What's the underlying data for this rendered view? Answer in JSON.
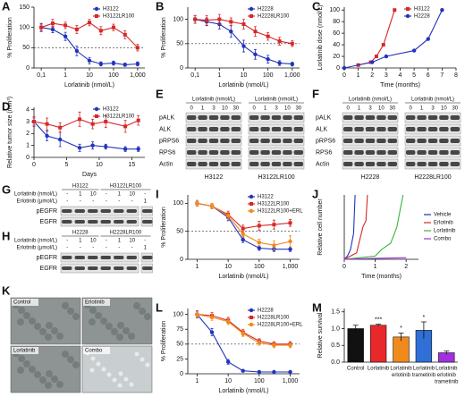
{
  "chart_data": [
    {
      "panel": "A",
      "type": "line",
      "log_x": true,
      "xlabel": "Lorlatinib (nmol/L)",
      "ylabel": "% Proliferation",
      "x": [
        0.1,
        0.3,
        1,
        3,
        10,
        30,
        100,
        300,
        1000
      ],
      "series": [
        {
          "name": "H3122",
          "color": "#2233bb",
          "marker": "circle",
          "values": [
            100,
            95,
            78,
            42,
            18,
            10,
            12,
            8,
            10
          ],
          "errors": [
            10,
            8,
            10,
            12,
            8,
            5,
            5,
            4,
            5
          ]
        },
        {
          "name": "H3122LR100",
          "color": "#d62828",
          "marker": "square",
          "values": [
            100,
            110,
            105,
            95,
            112,
            92,
            100,
            82,
            50
          ],
          "errors": [
            8,
            10,
            8,
            10,
            8,
            10,
            8,
            10,
            8
          ]
        }
      ],
      "xlim": [
        0.05,
        2000
      ],
      "ylim": [
        0,
        150
      ],
      "xticks": [
        {
          "value": 0.1,
          "label": "0,1"
        },
        1,
        10,
        100,
        {
          "value": 1000,
          "label": "1,000"
        }
      ],
      "yticks": [
        0,
        50,
        100,
        150
      ],
      "ref_line": 50,
      "legend": "top-right"
    },
    {
      "panel": "B",
      "type": "line",
      "log_x": true,
      "xlabel": "Lorlatinib (nmol/L)",
      "ylabel": "% Proliferation",
      "x": [
        0.1,
        0.3,
        1,
        3,
        10,
        30,
        100,
        300,
        1000
      ],
      "series": [
        {
          "name": "H2228",
          "color": "#2233bb",
          "marker": "circle",
          "values": [
            100,
            95,
            90,
            75,
            45,
            28,
            18,
            10,
            8
          ],
          "errors": [
            8,
            8,
            10,
            12,
            12,
            10,
            8,
            5,
            4
          ]
        },
        {
          "name": "H2228LR100",
          "color": "#d62828",
          "marker": "square",
          "values": [
            100,
            98,
            100,
            95,
            90,
            75,
            65,
            55,
            50
          ],
          "errors": [
            8,
            10,
            10,
            8,
            10,
            10,
            8,
            8,
            6
          ]
        }
      ],
      "xlim": [
        0.05,
        2000
      ],
      "ylim": [
        0,
        125
      ],
      "xticks": [
        {
          "value": 0.1,
          "label": "0,1"
        },
        1,
        10,
        100,
        {
          "value": 1000,
          "label": "1,000"
        }
      ],
      "yticks": [
        0,
        50,
        100
      ],
      "ref_line": 50,
      "legend": "top-right"
    },
    {
      "panel": "C",
      "type": "line",
      "xlabel": "Time (months)",
      "ylabel": "Lorlatinib dose (nmol/L)",
      "series": [
        {
          "name": "H3122",
          "color": "#d62828",
          "marker": "square",
          "x": [
            1,
            1.9,
            2.3,
            2.8,
            3.6
          ],
          "values": [
            5,
            10,
            20,
            40,
            100
          ]
        },
        {
          "name": "H2228",
          "color": "#2233bb",
          "marker": "circle",
          "x": [
            0,
            2,
            3,
            5,
            6,
            7
          ],
          "values": [
            0,
            10,
            20,
            30,
            50,
            100
          ]
        }
      ],
      "xlim": [
        0,
        8
      ],
      "ylim": [
        0,
        105
      ],
      "xticks": [
        0,
        1,
        2,
        3,
        4,
        5,
        6,
        7,
        8
      ],
      "yticks": [
        0,
        20,
        40,
        60,
        80,
        100
      ],
      "legend": "top-right"
    },
    {
      "panel": "D",
      "type": "line",
      "xlabel": "Days",
      "ylabel": "Relative tumor size (mm³)",
      "x": [
        0,
        2,
        4,
        7,
        9,
        11,
        14,
        16
      ],
      "series": [
        {
          "name": "H3122",
          "color": "#2233bb",
          "marker": "circle",
          "values": [
            3,
            1.8,
            1.5,
            0.8,
            1,
            0.9,
            0.7,
            0.7
          ],
          "errors": [
            0.3,
            0.4,
            0.6,
            0.3,
            0.3,
            0.2,
            0.2,
            0.2
          ]
        },
        {
          "name": "H3122LR100",
          "color": "#d62828",
          "marker": "square",
          "values": [
            3,
            2.8,
            2.5,
            3.2,
            2.8,
            3,
            2.6,
            3.1
          ],
          "errors": [
            0.4,
            0.5,
            0.4,
            0.6,
            0.4,
            0.5,
            0.5,
            0.4
          ]
        }
      ],
      "xlim": [
        0,
        17
      ],
      "ylim": [
        0,
        4.2
      ],
      "xticks": [
        0,
        5,
        10,
        15
      ],
      "yticks": [
        0,
        1,
        2,
        3,
        4
      ],
      "legend": "top-right"
    },
    {
      "panel": "I",
      "type": "line",
      "log_x": true,
      "xlabel": "Lorlatinib (nmol/L)",
      "ylabel": "% Proliferation",
      "x": [
        1,
        3,
        10,
        30,
        100,
        300,
        1000
      ],
      "series": [
        {
          "name": "H3122",
          "color": "#2233bb",
          "marker": "circle",
          "values": [
            100,
            95,
            75,
            35,
            20,
            18,
            18
          ],
          "errors": [
            5,
            5,
            6,
            5,
            4,
            4,
            4
          ]
        },
        {
          "name": "H3122LR100",
          "color": "#d62828",
          "marker": "square",
          "values": [
            100,
            95,
            80,
            55,
            60,
            62,
            65
          ],
          "errors": [
            5,
            5,
            6,
            6,
            8,
            8,
            6
          ]
        },
        {
          "name": "H3122LR100+ERL",
          "color": "#f08a1c",
          "marker": "circle",
          "values": [
            100,
            95,
            78,
            45,
            30,
            25,
            32
          ],
          "errors": [
            5,
            5,
            6,
            6,
            6,
            8,
            10
          ]
        }
      ],
      "xlim": [
        0.5,
        2000
      ],
      "ylim": [
        0,
        115
      ],
      "xticks": [
        1,
        10,
        100,
        {
          "value": 1000,
          "label": "1,000"
        }
      ],
      "yticks": [
        0,
        50,
        100
      ],
      "ref_line": 50,
      "legend": "top-right"
    },
    {
      "panel": "J",
      "type": "line",
      "xlabel": "Time (months)",
      "ylabel": "Relative cell number",
      "series": [
        {
          "name": "Vehicle",
          "color": "#2233bb",
          "x": [
            0,
            0.1,
            0.2,
            0.3,
            0.35
          ],
          "values": [
            0,
            1,
            3,
            8,
            20
          ]
        },
        {
          "name": "Erlotinib",
          "color": "#d62828",
          "x": [
            0,
            0.2,
            0.4,
            0.6,
            0.7,
            0.75
          ],
          "values": [
            0,
            1,
            2,
            10,
            12,
            20
          ]
        },
        {
          "name": "Lorlatinib",
          "color": "#3cb43c",
          "x": [
            0,
            0.5,
            1,
            1.2,
            1.5,
            1.7,
            1.9
          ],
          "values": [
            0,
            0.5,
            1,
            3,
            5,
            10,
            20
          ]
        },
        {
          "name": "Combo",
          "color": "#9b30d9",
          "x": [
            0,
            1,
            2
          ],
          "values": [
            0,
            0.3,
            0.5
          ]
        }
      ],
      "xlim": [
        0,
        2.4
      ],
      "ylim": [
        0,
        20
      ],
      "xticks": [
        0,
        1,
        2
      ],
      "legend": "right"
    },
    {
      "panel": "L",
      "type": "line",
      "log_x": true,
      "xlabel": "Lorlatinib (nmol/L)",
      "ylabel": "% Proliferation",
      "x": [
        1,
        3,
        10,
        30,
        100,
        300,
        1000
      ],
      "series": [
        {
          "name": "H2228",
          "color": "#2233bb",
          "marker": "circle",
          "values": [
            100,
            70,
            20,
            5,
            3,
            3,
            3
          ],
          "errors": [
            6,
            6,
            4,
            2,
            2,
            2,
            2
          ]
        },
        {
          "name": "H2228LR100",
          "color": "#d62828",
          "marker": "square",
          "values": [
            100,
            98,
            90,
            70,
            55,
            50,
            50
          ],
          "errors": [
            5,
            5,
            5,
            5,
            4,
            4,
            4
          ]
        },
        {
          "name": "H2228LR100+ERL",
          "color": "#f08a1c",
          "marker": "circle",
          "values": [
            100,
            95,
            88,
            68,
            52,
            48,
            48
          ],
          "errors": [
            5,
            5,
            5,
            5,
            4,
            4,
            4
          ]
        }
      ],
      "xlim": [
        0.5,
        2000
      ],
      "ylim": [
        0,
        110
      ],
      "xticks": [
        1,
        10,
        100,
        {
          "value": 1000,
          "label": "1,000"
        }
      ],
      "yticks": [
        0,
        25,
        50,
        75,
        100
      ],
      "ref_line": 50,
      "legend": "top-right"
    },
    {
      "panel": "M",
      "type": "bar",
      "ylabel": "Relative survival",
      "categories": [
        [
          "Control"
        ],
        [
          "Lorlatinib"
        ],
        [
          "Lorlatinib",
          "erlotinib"
        ],
        [
          "Lorlatinib",
          "trametinib"
        ],
        [
          "Lorlatinib",
          "erlotinib",
          "trametinib"
        ]
      ],
      "values": [
        1.0,
        1.1,
        0.75,
        0.95,
        0.28
      ],
      "errors": [
        0.1,
        0.03,
        0.12,
        0.25,
        0.05
      ],
      "colors": [
        "#111111",
        "#e8282b",
        "#f08a1c",
        "#2f6fd6",
        "#a030e0"
      ],
      "annotations": [
        null,
        "***",
        "*",
        "*",
        null
      ],
      "ylim": [
        0,
        1.6
      ],
      "yticks": [
        {
          "value": 0,
          "label": "0.0"
        },
        0.5,
        {
          "value": 1,
          "label": "1.0"
        },
        1.5
      ]
    }
  ],
  "blots": [
    {
      "panel": "E",
      "treatment_label": "Lorlatinib (nmol/L)",
      "groups": [
        {
          "name": "H3122",
          "lanes": [
            "0",
            "1",
            "3",
            "10",
            "30"
          ]
        },
        {
          "name": "H3122LR100",
          "lanes": [
            "0",
            "1",
            "3",
            "10",
            "30"
          ]
        }
      ],
      "rows": [
        "pALK",
        "ALK",
        "pRPS6",
        "RPS6",
        "Actin"
      ]
    },
    {
      "panel": "F",
      "treatment_label": "Lorlatinib (nmol/L)",
      "groups": [
        {
          "name": "H2228",
          "lanes": [
            "0",
            "1",
            "3",
            "10",
            "30"
          ]
        },
        {
          "name": "H2228LR100",
          "lanes": [
            "0",
            "1",
            "3",
            "10",
            "30"
          ]
        }
      ],
      "rows": [
        "pALK",
        "ALK",
        "pRPS6",
        "RPS6",
        "Actin"
      ]
    },
    {
      "panel": "G",
      "groups": [
        "H3122",
        "H3122LR100"
      ],
      "treatments": [
        {
          "label": "Lorlatinib (nmol/L)",
          "lanes": [
            "-",
            "1",
            "10",
            "-",
            "1",
            "10",
            "-"
          ]
        },
        {
          "label": "Erlotinib (μmol/L)",
          "lanes": [
            "-",
            "-",
            "-",
            "-",
            "-",
            "-",
            "1"
          ]
        }
      ],
      "rows": [
        "pEGFR",
        "EGFR"
      ]
    },
    {
      "panel": "H",
      "groups": [
        "H2228",
        "H2228LR100"
      ],
      "treatments": [
        {
          "label": "Lorlatinib (nmol/L)",
          "lanes": [
            "-",
            "1",
            "10",
            "-",
            "1",
            "10",
            "-"
          ]
        },
        {
          "label": "Erlotinib (μmol/L)",
          "lanes": [
            "-",
            "-",
            "-",
            "-",
            "-",
            "-",
            "1"
          ]
        }
      ],
      "rows": [
        "pEGFR",
        "EGFR"
      ]
    }
  ],
  "images": {
    "panel": "K",
    "labels": [
      "Control",
      "Erlotinib",
      "Lorlatinib",
      "Combo"
    ]
  }
}
